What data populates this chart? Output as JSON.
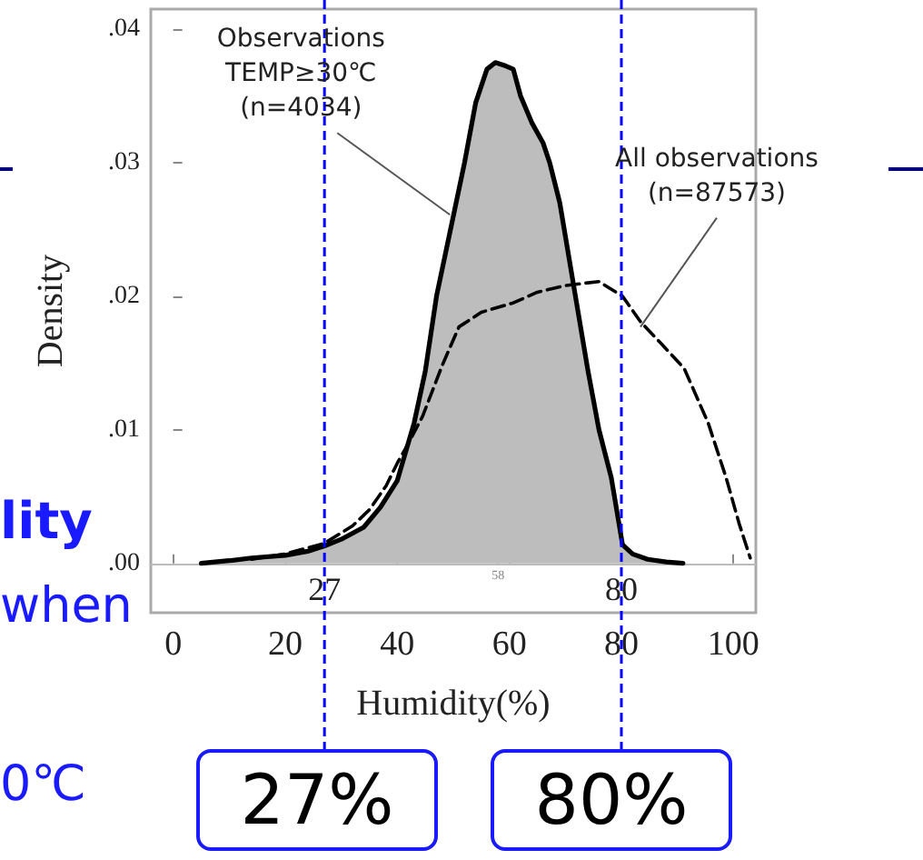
{
  "chart_data": {
    "type": "area",
    "ylabel": "Density",
    "xlabel": "Humidity(%)",
    "xlim": [
      -4,
      104
    ],
    "xticks": [
      0,
      20,
      40,
      60,
      80,
      100
    ],
    "ylim": [
      -0.0037,
      0.0415
    ],
    "yticks": [
      {
        "value": 0,
        "label": ".00"
      },
      {
        "value": 0.01,
        "label": ".01"
      },
      {
        "value": 0.02,
        "label": ".02"
      },
      {
        "value": 0.03,
        "label": ".03"
      },
      {
        "value": 0.04,
        "label": ".04"
      }
    ],
    "series": [
      {
        "color": "#000000",
        "line_style": "solid",
        "x": [
          5,
          10,
          14,
          20,
          24,
          27,
          30,
          34,
          37,
          40,
          43,
          45,
          47,
          50,
          52,
          54,
          56,
          57.5,
          59,
          60.7,
          62,
          64,
          66,
          67.2,
          69,
          71.8,
          74,
          76,
          78.2,
          80.2,
          82,
          84.7,
          88,
          91
        ],
        "values": [
          0,
          0.0002,
          0.0004,
          0.0006,
          0.0009,
          0.0013,
          0.0018,
          0.0027,
          0.0042,
          0.0062,
          0.0105,
          0.0144,
          0.02,
          0.026,
          0.03,
          0.0345,
          0.037,
          0.0375,
          0.0373,
          0.037,
          0.035,
          0.033,
          0.0315,
          0.03,
          0.027,
          0.02,
          0.0145,
          0.01,
          0.0064,
          0.0014,
          0.0007,
          0.0003,
          0.0001,
          0
        ]
      },
      {
        "type": "line",
        "color": "#000000",
        "line_style": "dashed",
        "x": [
          14,
          20,
          27,
          32,
          35,
          38,
          40,
          42,
          44.5,
          48,
          51,
          55,
          60.7,
          65,
          70,
          76,
          80.2,
          83.4,
          87,
          91.2,
          95.5,
          98.7,
          101,
          103
        ],
        "values": [
          0.0003,
          0.0007,
          0.0015,
          0.0028,
          0.004,
          0.0058,
          0.0075,
          0.009,
          0.011,
          0.0148,
          0.0177,
          0.0188,
          0.0195,
          0.0203,
          0.0208,
          0.0211,
          0.02,
          0.0181,
          0.0165,
          0.0146,
          0.0105,
          0.0064,
          0.003,
          0.0004
        ]
      }
    ],
    "ref_lines": [
      {
        "axis": "x",
        "value": 27,
        "label": "27",
        "color": "#0000ff",
        "line_style": "dashed"
      },
      {
        "axis": "x",
        "value": 80,
        "label": "80",
        "color": "#0000ff",
        "line_style": "dashed"
      },
      {
        "axis": "y",
        "value": 0,
        "color": "#bbbbbb",
        "line_style": "solid"
      }
    ],
    "annotations": [
      {
        "text": "Observations\nTEMP≥30℃\n(n=4034)",
        "x": 49.4,
        "y": 0.0261
      },
      {
        "text": "All observations\n(n=87573)",
        "x": 83.4,
        "y": 0.0177
      },
      {
        "text": "58",
        "x": 58,
        "y": 0
      },
      "27%",
      "80%",
      "lity",
      "when",
      "0℃"
    ],
    "grid": false
  }
}
